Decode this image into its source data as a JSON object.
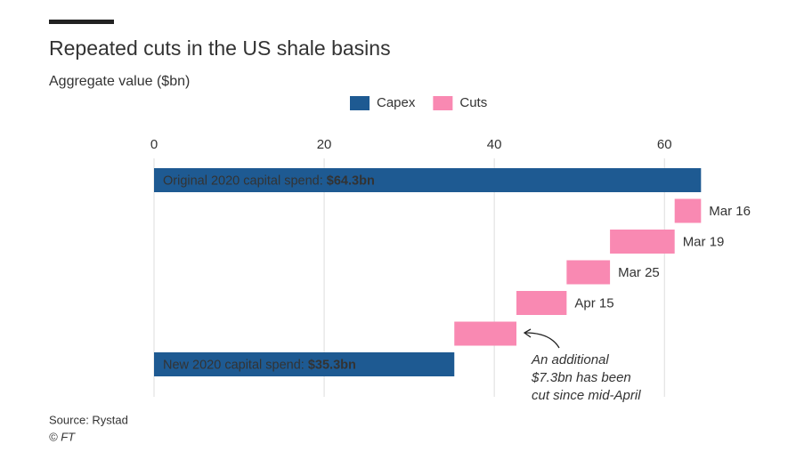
{
  "chart_data": {
    "type": "waterfall",
    "title": "Repeated cuts in the US shale basins",
    "subtitle": "Aggregate value ($bn)",
    "categories": [
      "Original 2020 capital spend:",
      "Mar 16",
      "Mar 19",
      "Mar 25",
      "Apr 15",
      null,
      "New 2020 capital spend:"
    ],
    "series": [
      {
        "name": "Capex",
        "color": "#1e5a92",
        "values": [
          64.3,
          null,
          null,
          null,
          null,
          null,
          35.3
        ],
        "value_labels": [
          "$64.3bn",
          null,
          null,
          null,
          null,
          null,
          "$35.3bn"
        ]
      },
      {
        "name": "Cuts",
        "color": "#f989b2",
        "values": [
          null,
          3.1,
          7.6,
          5.1,
          5.9,
          7.3,
          null
        ]
      }
    ],
    "xlim": [
      0,
      65
    ],
    "xticks": [
      0,
      20,
      40,
      60
    ],
    "grid": true,
    "legend": "top",
    "annotation": [
      "An additional",
      "$7.3bn has been",
      "cut since mid-April"
    ],
    "source": "Source: Rystad",
    "credit": "© FT"
  }
}
